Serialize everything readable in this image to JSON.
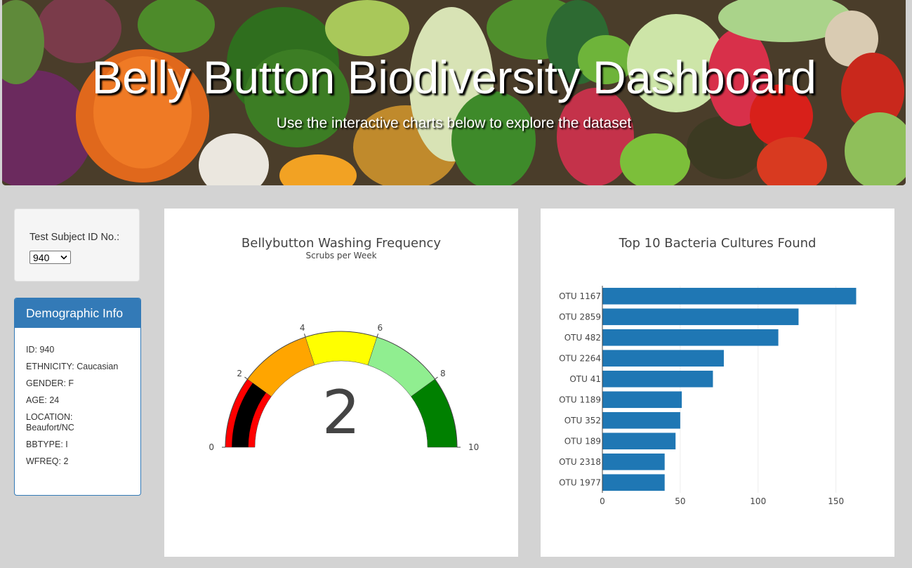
{
  "header": {
    "title": "Belly Button Biodiversity Dashboard",
    "subtitle": "Use the interactive charts below to explore the dataset"
  },
  "selector": {
    "label": "Test Subject ID No.:",
    "selected": "940"
  },
  "demographics": {
    "title": "Demographic Info",
    "rows": [
      "ID: 940",
      "ETHNICITY: Caucasian",
      "GENDER: F",
      "AGE: 24",
      "LOCATION: Beaufort/NC",
      "BBTYPE: I",
      "WFREQ: 2"
    ]
  },
  "colors": {
    "accent": "#337ab7",
    "bar": "#1f77b4"
  },
  "chart_data": [
    {
      "type": "gauge",
      "title": "Bellybutton Washing Frequency",
      "subtitle": "Scrubs per Week",
      "value": 2,
      "range": [
        0,
        10
      ],
      "ticks": [
        "0",
        "2",
        "4",
        "6",
        "8",
        "10"
      ],
      "bands": [
        {
          "from": 0,
          "to": 2,
          "color": "#ff0000"
        },
        {
          "from": 2,
          "to": 4,
          "color": "#ffa500"
        },
        {
          "from": 4,
          "to": 6,
          "color": "#ffff00"
        },
        {
          "from": 6,
          "to": 8,
          "color": "#90ee90"
        },
        {
          "from": 8,
          "to": 10,
          "color": "#008000"
        }
      ],
      "bar_color": "#000000"
    },
    {
      "type": "bar",
      "orientation": "horizontal",
      "title": "Top 10 Bacteria Cultures Found",
      "categories": [
        "OTU 1167",
        "OTU 2859",
        "OTU 482",
        "OTU 2264",
        "OTU 41",
        "OTU 1189",
        "OTU 352",
        "OTU 189",
        "OTU 2318",
        "OTU 1977"
      ],
      "values": [
        163,
        126,
        113,
        78,
        71,
        51,
        50,
        47,
        40,
        40
      ],
      "xticks": [
        "0",
        "50",
        "100",
        "150"
      ],
      "xlim": [
        0,
        170
      ],
      "grid": true
    }
  ]
}
